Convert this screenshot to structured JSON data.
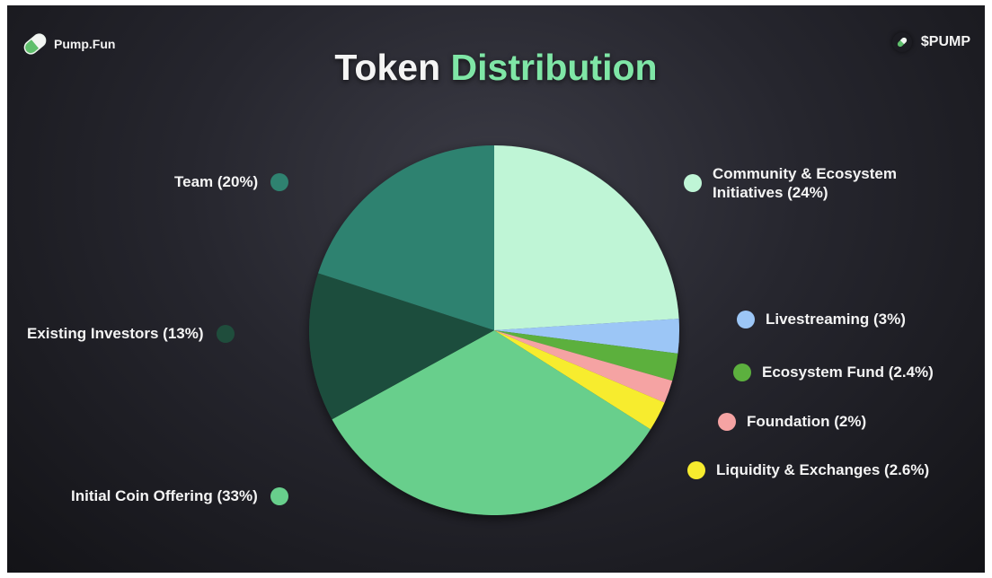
{
  "brand": {
    "name": "Pump.Fun",
    "logo_icon": "pill-icon"
  },
  "ticker": {
    "label": "$PUMP",
    "icon": "pill-icon"
  },
  "title": {
    "part1": "Token",
    "part2": "Distribution"
  },
  "colors": {
    "title_accent": "#7fe6a6",
    "background": "#26262e"
  },
  "chart_data": {
    "type": "pie",
    "title": "Token Distribution",
    "slices": [
      {
        "label": "Community & Ecosystem Initiatives (24%)",
        "value": 24,
        "color": "#bff5d6"
      },
      {
        "label": "Livestreaming (3%)",
        "value": 3,
        "color": "#9cc6f6"
      },
      {
        "label": "Ecosystem Fund (2.4%)",
        "value": 2.4,
        "color": "#5cb03e"
      },
      {
        "label": "Foundation (2%)",
        "value": 2,
        "color": "#f5a3a3"
      },
      {
        "label": "Liquidity & Exchanges (2.6%)",
        "value": 2.6,
        "color": "#f7ec2e"
      },
      {
        "label": "Initial Coin Offering (33%)",
        "value": 33,
        "color": "#68cf8c"
      },
      {
        "label": "Existing Investors (13%)",
        "value": 13,
        "color": "#1f4d3c"
      },
      {
        "label": "Team (20%)",
        "value": 20,
        "color": "#2f8270"
      }
    ],
    "legend_placement": "around"
  }
}
